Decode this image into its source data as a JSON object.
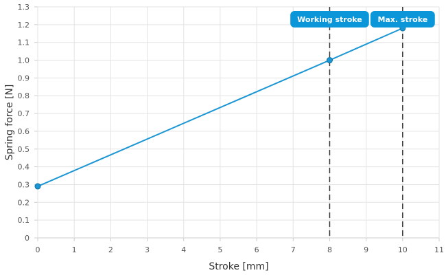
{
  "chart_data": {
    "type": "line",
    "title": "",
    "xlabel": "Stroke [mm]",
    "ylabel": "Spring force [N]",
    "xlim": [
      0,
      11
    ],
    "ylim": [
      0,
      1.3
    ],
    "x_ticks": [
      "0",
      "1",
      "2",
      "3",
      "4",
      "5",
      "6",
      "7",
      "8",
      "9",
      "10",
      "11"
    ],
    "y_ticks": [
      "0",
      "0.1",
      "0.2",
      "0.3",
      "0.4",
      "0.5",
      "0.6",
      "0.7",
      "0.8",
      "0.9",
      "1.0",
      "1.1",
      "1.2",
      "1.3"
    ],
    "grid": true,
    "series": [
      {
        "color": "#1a96d4",
        "points": [
          {
            "x": 0,
            "y": 0.29
          },
          {
            "x": 8,
            "y": 1.0
          },
          {
            "x": 10,
            "y": 1.18
          }
        ]
      }
    ],
    "annotations": [
      {
        "label": "Working stroke",
        "x": 8,
        "color": "#0a96d8"
      },
      {
        "label": "Max. stroke",
        "x": 10,
        "color": "#0a96d8"
      }
    ]
  }
}
